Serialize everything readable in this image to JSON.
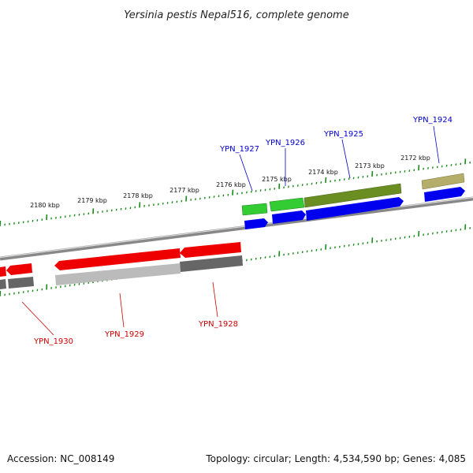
{
  "title": "Yersinia pestis Nepal516, complete genome",
  "footer": {
    "accession": "Accession: NC_008149",
    "summary": "Topology: circular; Length: 4,534,590 bp; Genes: 4,085"
  },
  "ticks": [
    "2180 kbp",
    "2179 kbp",
    "2178 kbp",
    "2177 kbp",
    "2176 kbp",
    "2175 kbp",
    "2174 kbp",
    "2173 kbp",
    "2172 kbp"
  ],
  "genes_forward": [
    "YPN_1927",
    "YPN_1926",
    "YPN_1925",
    "YPN_1924"
  ],
  "genes_reverse": [
    "YPN_1930",
    "YPN_1929",
    "YPN_1928"
  ],
  "colors": {
    "forward_label": "#0000cc",
    "reverse_label": "#cc0000",
    "backbone": "#888888",
    "tick": "#1a8a1a",
    "cds_forward": "#0000ee",
    "cds_reverse": "#ee0000",
    "gene_green": "#33cc33",
    "gene_olive": "#6b8e23",
    "gene_khaki": "#b5ad6a",
    "gene_gray": "#666666",
    "gene_lightgray": "#bbbbbb"
  }
}
